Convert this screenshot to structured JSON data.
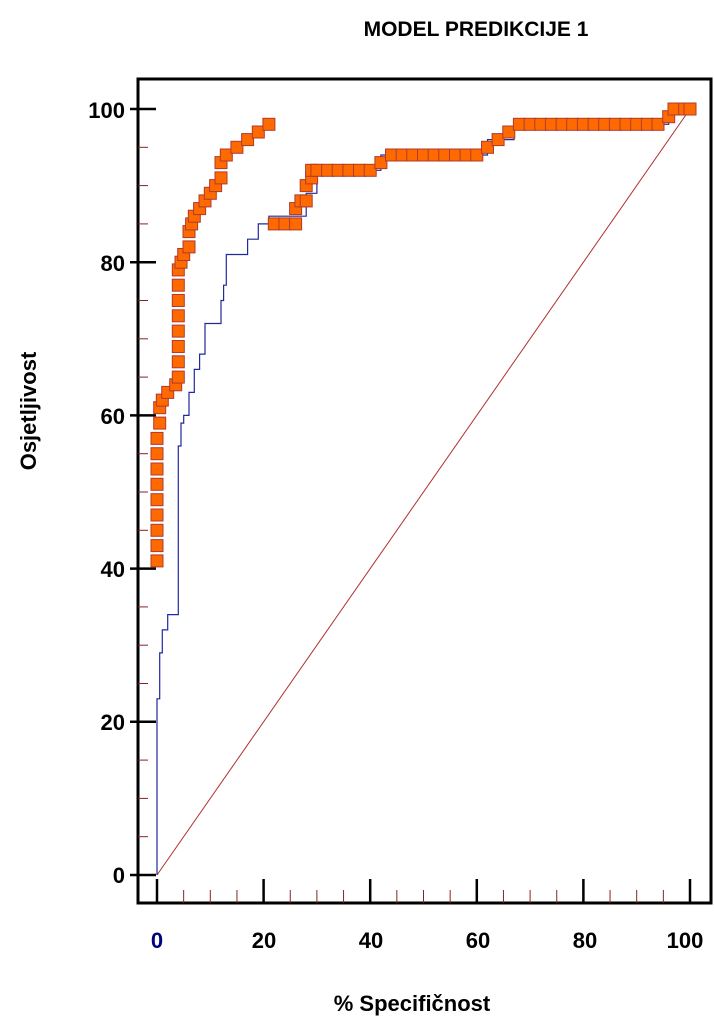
{
  "chart_data": {
    "type": "line",
    "title": "MODEL PREDIKCIJE 1",
    "xlabel": "% Specifičnost",
    "ylabel": "Osjetljivost",
    "xlim": [
      0,
      100
    ],
    "ylim": [
      0,
      100
    ],
    "x_ticks": [
      "0",
      "20",
      "40",
      "60",
      "80",
      "100"
    ],
    "y_ticks": [
      "0",
      "20",
      "40",
      "60",
      "80",
      "100"
    ],
    "colors": {
      "roc_line": "#1f2a9c",
      "ci_box_fill": "#ff6a00",
      "ci_box_stroke": "#b03a2e",
      "diagonal": "#b03030",
      "axis": "#000000",
      "first_x_tick": "#000080"
    },
    "series": [
      {
        "type": "step",
        "points": [
          [
            0,
            0
          ],
          [
            0,
            23
          ],
          [
            0.5,
            23
          ],
          [
            0.5,
            29
          ],
          [
            1,
            29
          ],
          [
            1,
            32
          ],
          [
            2,
            32
          ],
          [
            2,
            34
          ],
          [
            4,
            34
          ],
          [
            4,
            56
          ],
          [
            4.5,
            56
          ],
          [
            4.5,
            59
          ],
          [
            5,
            59
          ],
          [
            5,
            60
          ],
          [
            6,
            60
          ],
          [
            6,
            63
          ],
          [
            7,
            63
          ],
          [
            7,
            66
          ],
          [
            8,
            66
          ],
          [
            8,
            68
          ],
          [
            9,
            68
          ],
          [
            9,
            72
          ],
          [
            12,
            72
          ],
          [
            12,
            75
          ],
          [
            12.5,
            75
          ],
          [
            12.5,
            77
          ],
          [
            13,
            77
          ],
          [
            13,
            81
          ],
          [
            17,
            81
          ],
          [
            17,
            83
          ],
          [
            19,
            83
          ],
          [
            19,
            85
          ],
          [
            21,
            85
          ],
          [
            21,
            86
          ],
          [
            28,
            86
          ],
          [
            28,
            89
          ],
          [
            30,
            89
          ],
          [
            30,
            92
          ],
          [
            42,
            92
          ],
          [
            42,
            94
          ],
          [
            62,
            94
          ],
          [
            62,
            96
          ],
          [
            67,
            96
          ],
          [
            67,
            98
          ],
          [
            96,
            98
          ],
          [
            96,
            100
          ],
          [
            100,
            100
          ]
        ]
      },
      {
        "type": "boxes",
        "boxes": [
          [
            0,
            41
          ],
          [
            0,
            43
          ],
          [
            0,
            45
          ],
          [
            0,
            47
          ],
          [
            0,
            49
          ],
          [
            0,
            51
          ],
          [
            0,
            53
          ],
          [
            0,
            55
          ],
          [
            0,
            57
          ],
          [
            0.5,
            59
          ],
          [
            0.5,
            61
          ],
          [
            1,
            62
          ],
          [
            2,
            63
          ],
          [
            3.5,
            64
          ],
          [
            4,
            65
          ],
          [
            4,
            67
          ],
          [
            4,
            69
          ],
          [
            4,
            71
          ],
          [
            4,
            73
          ],
          [
            4,
            75
          ],
          [
            4,
            77
          ],
          [
            4,
            79
          ],
          [
            4.5,
            80
          ],
          [
            5,
            81
          ],
          [
            6,
            82
          ],
          [
            6,
            84
          ],
          [
            6.5,
            85
          ],
          [
            7,
            86
          ],
          [
            8,
            87
          ],
          [
            9,
            88
          ],
          [
            10,
            89
          ],
          [
            11,
            90
          ],
          [
            12,
            91
          ],
          [
            12,
            93
          ],
          [
            13,
            94
          ],
          [
            15,
            95
          ],
          [
            17,
            96
          ],
          [
            19,
            97
          ],
          [
            21,
            98
          ],
          [
            22,
            85
          ],
          [
            24,
            85
          ],
          [
            26,
            85
          ],
          [
            26,
            87
          ],
          [
            27,
            88
          ],
          [
            28,
            88
          ],
          [
            28,
            90
          ],
          [
            29,
            91
          ],
          [
            29,
            92
          ],
          [
            30,
            92
          ],
          [
            32,
            92
          ],
          [
            34,
            92
          ],
          [
            36,
            92
          ],
          [
            38,
            92
          ],
          [
            40,
            92
          ],
          [
            42,
            93
          ],
          [
            44,
            94
          ],
          [
            46,
            94
          ],
          [
            48,
            94
          ],
          [
            50,
            94
          ],
          [
            52,
            94
          ],
          [
            54,
            94
          ],
          [
            56,
            94
          ],
          [
            58,
            94
          ],
          [
            60,
            94
          ],
          [
            62,
            95
          ],
          [
            64,
            96
          ],
          [
            66,
            97
          ],
          [
            68,
            98
          ],
          [
            70,
            98
          ],
          [
            72,
            98
          ],
          [
            74,
            98
          ],
          [
            76,
            98
          ],
          [
            78,
            98
          ],
          [
            80,
            98
          ],
          [
            82,
            98
          ],
          [
            84,
            98
          ],
          [
            86,
            98
          ],
          [
            88,
            98
          ],
          [
            90,
            98
          ],
          [
            92,
            98
          ],
          [
            94,
            98
          ],
          [
            96,
            99
          ],
          [
            97,
            100
          ],
          [
            99,
            100
          ],
          [
            100,
            100
          ]
        ]
      },
      {
        "type": "diagonal",
        "points": [
          [
            0,
            0
          ],
          [
            100,
            100
          ]
        ]
      }
    ]
  }
}
